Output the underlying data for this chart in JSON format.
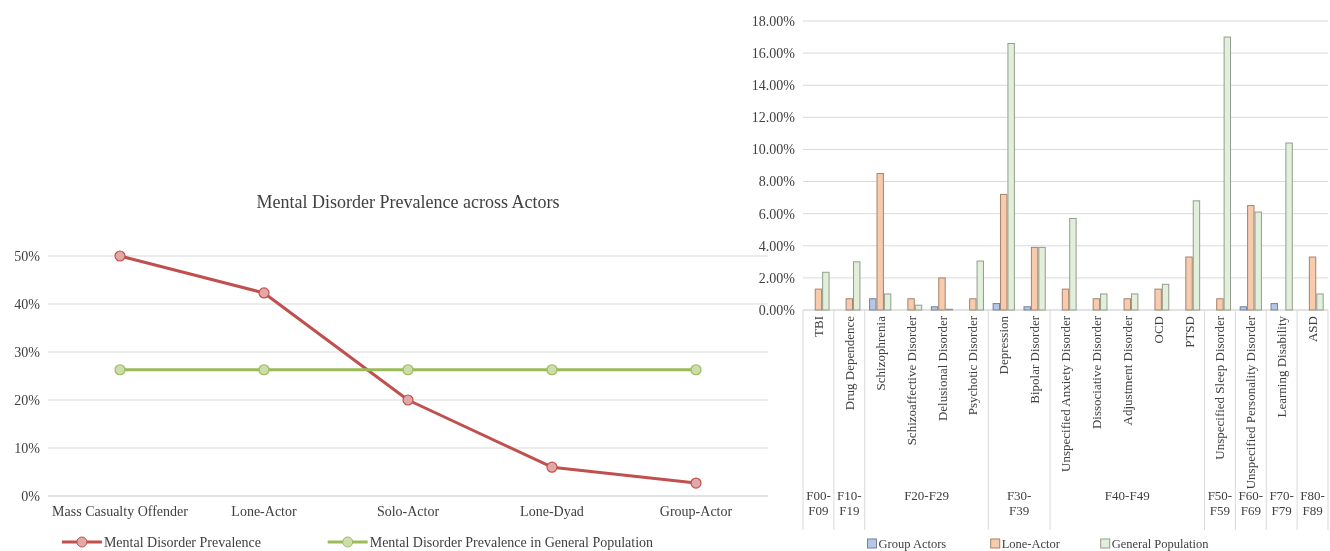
{
  "chart_data": [
    {
      "type": "line",
      "title": "Mental Disorder Prevalence across Actors",
      "categories": [
        "Mass Casualty Offender",
        "Lone-Actor",
        "Solo-Actor",
        "Lone-Dyad",
        "Group-Actor"
      ],
      "series": [
        {
          "name": "Mental Disorder Prevalence",
          "color": "#c0504d",
          "values": [
            50,
            42.3,
            20,
            6,
            2.7
          ]
        },
        {
          "name": "Mental Disorder Prevalence in General Population",
          "color": "#9bbb59",
          "values": [
            26.3,
            26.3,
            26.3,
            26.3,
            26.3
          ]
        }
      ],
      "ylim": [
        0,
        50
      ],
      "yticks": [
        {
          "value": 0,
          "label": "0%"
        },
        {
          "value": 10,
          "label": "10%"
        },
        {
          "value": 20,
          "label": "20%"
        },
        {
          "value": 30,
          "label": "30%"
        },
        {
          "value": 40,
          "label": "40%"
        },
        {
          "value": 50,
          "label": "50%"
        }
      ],
      "grid": "y",
      "legend": "bottom",
      "marker": "circle"
    },
    {
      "type": "bar",
      "categories": [
        "TBI",
        "Drug Dependence",
        "Schizophrenia",
        "Schizoaffective Disorder",
        "Delusional Disorder",
        "Psychotic Disorder",
        "Depression",
        "Bipolar Disorder",
        "Unspecified Anxiety Disorder",
        "Dissociative Disorder",
        "Adjustment Disorder",
        "OCD",
        "PTSD",
        "Unspecified Sleep Disorder",
        "Unspecified Personality Disorder",
        "Learning Disability",
        "ASD"
      ],
      "series": [
        {
          "name": "Group Actors",
          "color": "#b4c7e7",
          "values": [
            0,
            0,
            0.7,
            0,
            0.2,
            0,
            0.4,
            0.2,
            0,
            0,
            0,
            0,
            0,
            0,
            0.2,
            0.4,
            0
          ]
        },
        {
          "name": "Lone-Actor",
          "color": "#f8cbad",
          "values": [
            1.3,
            0.7,
            8.5,
            0.7,
            2.0,
            0.7,
            7.2,
            3.9,
            1.3,
            0.7,
            0.7,
            1.3,
            3.3,
            0.7,
            6.5,
            0,
            3.3
          ]
        },
        {
          "name": "General Population",
          "color": "#e2efda",
          "values": [
            2.35,
            3.0,
            1.0,
            0.3,
            0.05,
            3.05,
            16.6,
            3.9,
            5.7,
            1.0,
            1.0,
            1.6,
            6.8,
            17.0,
            6.1,
            10.4,
            1.0
          ]
        }
      ],
      "annotations": [
        "F00-F09",
        "F10-F19",
        "F20-F29",
        "F30-F39",
        "F40-F49",
        "F50-F59",
        "F60-F69",
        "F70-F79",
        "F80-F89"
      ],
      "ylim": [
        0,
        18
      ],
      "yticks": [
        {
          "value": 0,
          "label": "0.00%"
        },
        {
          "value": 2,
          "label": "2.00%"
        },
        {
          "value": 4,
          "label": "4.00%"
        },
        {
          "value": 6,
          "label": "6.00%"
        },
        {
          "value": 8,
          "label": "8.00%"
        },
        {
          "value": 10,
          "label": "10.00%"
        },
        {
          "value": 12,
          "label": "12.00%"
        },
        {
          "value": 14,
          "label": "14.00%"
        },
        {
          "value": 16,
          "label": "16.00%"
        },
        {
          "value": 18,
          "label": "18.00%"
        }
      ],
      "grid": "y",
      "legend": "bottom"
    }
  ]
}
